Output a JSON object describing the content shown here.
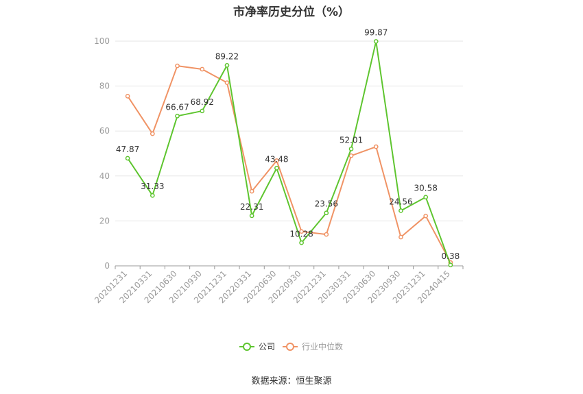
{
  "chart_data": {
    "type": "line",
    "title": "市净率历史分位（%）",
    "xlabel": "",
    "ylabel": "",
    "x": [
      "20201231",
      "20210331",
      "20210630",
      "20210930",
      "20211231",
      "20220331",
      "20220630",
      "20220930",
      "20221231",
      "20230331",
      "20230630",
      "20230930",
      "20231231",
      "20240415"
    ],
    "ylim": [
      0,
      100
    ],
    "yticks": [
      0,
      20,
      40,
      60,
      80,
      100
    ],
    "grid": true,
    "legend_position": "bottom",
    "series": [
      {
        "name": "公司",
        "color": "#5ec52f",
        "values": [
          47.87,
          31.33,
          66.67,
          68.92,
          89.22,
          22.31,
          43.48,
          10.28,
          23.56,
          52.01,
          99.87,
          24.56,
          30.58,
          0.38
        ],
        "labels": [
          "47.87",
          "31.33",
          "66.67",
          "68.92",
          "89.22",
          "22.31",
          "43.48",
          "10.28",
          "23.56",
          "52.01",
          "99.87",
          "24.56",
          "30.58",
          "0.38"
        ]
      },
      {
        "name": "行业中位数",
        "color": "#f09365",
        "values": [
          75.5,
          58.8,
          89.0,
          87.5,
          81.5,
          33.2,
          46.8,
          15.3,
          14.0,
          49.0,
          53.0,
          12.8,
          22.2,
          1.5
        ]
      }
    ],
    "source": "数据来源：恒生聚源"
  }
}
